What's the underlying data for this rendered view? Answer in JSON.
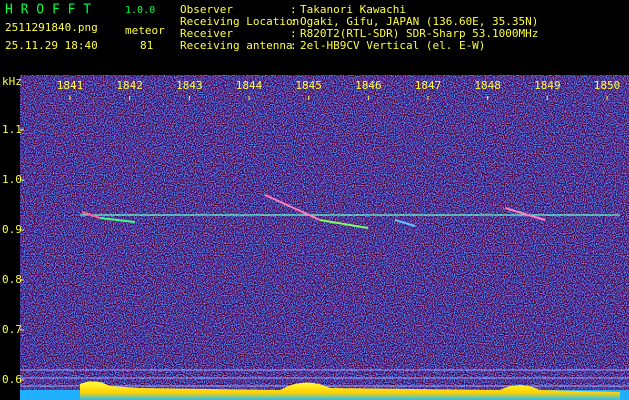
{
  "header": {
    "app": "H R O F F T",
    "version": "1.0.0",
    "file": "2511291840.png",
    "datetime": "25.11.29 18:40",
    "meteor_label": "meteor",
    "meteor_count": "81",
    "info": [
      {
        "label": "Observer",
        "value": "Takanori Kawachi"
      },
      {
        "label": "Receiving Location",
        "value": "Ogaki, Gifu, JAPAN (136.60E, 35.35N)"
      },
      {
        "label": "Receiver",
        "value": "R820T2(RTL-SDR) SDR-Sharp 53.1000MHz"
      },
      {
        "label": "Receiving antenna",
        "value": "2el-HB9CV Vertical (el. E-W)"
      }
    ],
    "separator": ":"
  },
  "axes": {
    "y_unit": "kHz",
    "x_labels": [
      "1841",
      "1842",
      "1843",
      "1844",
      "1845",
      "1846",
      "1847",
      "1848",
      "1849",
      "1850"
    ],
    "y_labels": [
      "1.1",
      "1.0",
      "0.9",
      "0.8",
      "0.7",
      "0.6"
    ]
  }
}
